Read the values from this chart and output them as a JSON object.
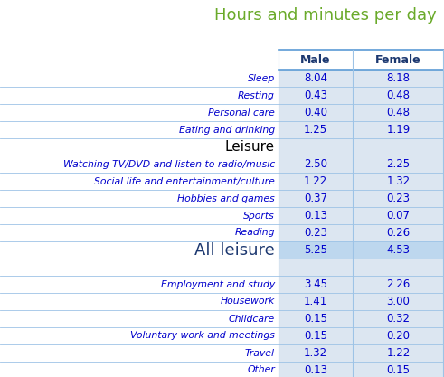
{
  "title": "Hours and minutes per day",
  "title_color": "#6aaa2a",
  "col_headers": [
    "Male",
    "Female"
  ],
  "col_header_color": "#1c3870",
  "rows": [
    {
      "label": "Sleep",
      "male": "8.04",
      "female": "8.18",
      "type": "data"
    },
    {
      "label": "Resting",
      "male": "0.43",
      "female": "0.48",
      "type": "data"
    },
    {
      "label": "Personal care",
      "male": "0.40",
      "female": "0.48",
      "type": "data"
    },
    {
      "label": "Eating and drinking",
      "male": "1.25",
      "female": "1.19",
      "type": "data"
    },
    {
      "label": "Leisure",
      "male": "",
      "female": "",
      "type": "section"
    },
    {
      "label": "Watching TV/DVD and listen to radio/music",
      "male": "2.50",
      "female": "2.25",
      "type": "data"
    },
    {
      "label": "Social life and entertainment/culture",
      "male": "1.22",
      "female": "1.32",
      "type": "data"
    },
    {
      "label": "Hobbies and games",
      "male": "0.37",
      "female": "0.23",
      "type": "data"
    },
    {
      "label": "Sports",
      "male": "0.13",
      "female": "0.07",
      "type": "data"
    },
    {
      "label": "Reading",
      "male": "0.23",
      "female": "0.26",
      "type": "data"
    },
    {
      "label": "All leisure",
      "male": "5.25",
      "female": "4.53",
      "type": "summary"
    },
    {
      "label": "",
      "male": "",
      "female": "",
      "type": "spacer"
    },
    {
      "label": "Employment and study",
      "male": "3.45",
      "female": "2.26",
      "type": "data"
    },
    {
      "label": "Housework",
      "male": "1.41",
      "female": "3.00",
      "type": "data"
    },
    {
      "label": "Childcare",
      "male": "0.15",
      "female": "0.32",
      "type": "data"
    },
    {
      "label": "Voluntary work and meetings",
      "male": "0.15",
      "female": "0.20",
      "type": "data"
    },
    {
      "label": "Travel",
      "male": "1.32",
      "female": "1.22",
      "type": "data"
    },
    {
      "label": "Other",
      "male": "0.13",
      "female": "0.15",
      "type": "data"
    }
  ],
  "bg_data": "#dce6f1",
  "bg_white": "#ffffff",
  "bg_section": "#dce6f1",
  "bg_summary": "#bdd7ee",
  "bg_spacer": "#dce6f1",
  "text_label": "#0000cc",
  "text_value": "#0000cc",
  "text_section": "#000000",
  "text_summary": "#1c3870",
  "line_color": "#9dc3e6",
  "line_color_header": "#5b9bd5",
  "title_fontsize": 13,
  "header_fontsize": 9,
  "label_fontsize": 7.8,
  "value_fontsize": 8.5,
  "section_fontsize": 11,
  "summary_fontsize": 13
}
